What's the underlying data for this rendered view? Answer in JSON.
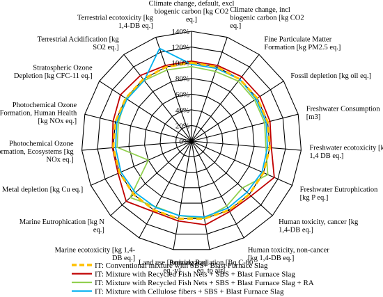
{
  "chart_data": {
    "type": "radar",
    "title": "",
    "rlim": [
      0,
      140
    ],
    "tick_values": [
      0,
      20,
      40,
      60,
      80,
      100,
      120,
      140
    ],
    "tick_labels": [
      "0%",
      "20%",
      "40%",
      "60%",
      "80%",
      "100%",
      "120%",
      "140%"
    ],
    "grid": true,
    "legend_position": "bottom",
    "categories": [
      [
        "Climate change, default, excl",
        "biogenic carbon [kg CO2",
        "eq.]"
      ],
      [
        "Climate change, incl",
        "biogenic carbon [kg CO2",
        "eq.]"
      ],
      [
        "Fine Particulate Matter",
        "Formation [kg PM2.5 eq.]"
      ],
      [
        "Fossil depletion [kg oil eq.]"
      ],
      [
        "Freshwater Consumption",
        "[m3]"
      ],
      [
        "Freshwater ecotoxicity [kg",
        "1,4 DB eq.]"
      ],
      [
        "Freshwater Eutrophication",
        "[kg P eq.]"
      ],
      [
        "Human toxicity, cancer [kg",
        "1,4-DB eq.]"
      ],
      [
        "Human toxicity, non-cancer",
        "[kg 1,4-DB eq.]"
      ],
      [
        "Ionizing Radiation [Bq C-60",
        "eq. to air]"
      ],
      [
        "Land use [Annual crop",
        "eq.·y]"
      ],
      [
        "Marine ecotoxicity [kg 1,4-",
        "DB eq.]"
      ],
      [
        "Marine Eutrophication [kg N",
        "eq.]"
      ],
      [
        "Metal depletion [kg Cu eq.]"
      ],
      [
        "Photochemical Ozone",
        "Formation, Ecosystems [kg",
        "NOx eq.]"
      ],
      [
        "Photochemical Ozone",
        "Formation, Human Health",
        "[kg NOx eq.]"
      ],
      [
        "Stratospheric Ozone",
        "Depletion [kg CFC-11 eq.]"
      ],
      [
        "Terrestrial Acidification [kg",
        "SO2 eq.]"
      ],
      [
        "Terrestrial ecotoxicity [kg",
        "1,4-DB eq.]"
      ]
    ],
    "series": [
      {
        "name": "IT: Conventional mixture with SBS+ Blast Furnace Slag",
        "color": "#FFC000",
        "dashed": true,
        "values": [
          100,
          100,
          100,
          100,
          100,
          100,
          100,
          100,
          100,
          100,
          100,
          100,
          100,
          100,
          100,
          100,
          100,
          100,
          100
        ]
      },
      {
        "name": "IT: Mixture with Recycled Fish Nets + SBS + Blast Furnace Slag",
        "color": "#C00000",
        "dashed": false,
        "values": [
          102,
          102,
          104,
          104,
          103,
          102,
          115,
          103,
          102,
          108,
          103,
          102,
          113,
          102,
          101,
          103,
          108,
          106,
          102
        ]
      },
      {
        "name": "IT: Mixture with Recycled Fish Nets + SBS + Blast Furnace Slag + RA",
        "color": "#92D050",
        "dashed": false,
        "values": [
          95,
          94,
          97,
          96,
          96,
          95,
          106,
          88,
          94,
          100,
          96,
          95,
          106,
          60,
          95,
          96,
          100,
          98,
          96
        ]
      },
      {
        "name": "IT: Mixture with Cellulose fibers + SBS + Blast Furnace Slag",
        "color": "#00B0F0",
        "dashed": false,
        "values": [
          98,
          98,
          100,
          98,
          98,
          97,
          98,
          96,
          97,
          98,
          96,
          96,
          97,
          98,
          97,
          98,
          98,
          98,
          125
        ]
      }
    ]
  }
}
